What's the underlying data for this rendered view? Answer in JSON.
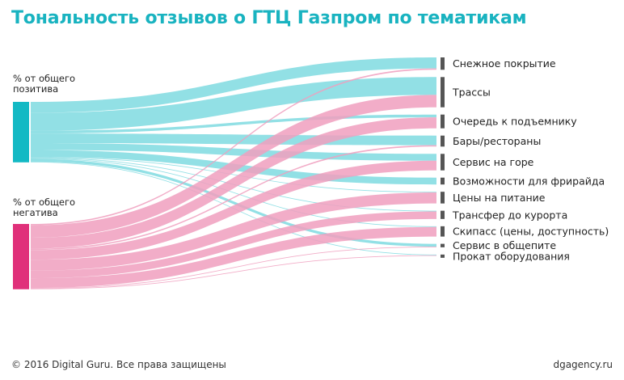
{
  "title": "Тональность отзывов о ГТЦ Газпром по тематикам",
  "sources": [
    {
      "id": "pos",
      "label": "% от общего\nпозитива",
      "color": "#13b9c4",
      "flow_color": "#7fdbe1"
    },
    {
      "id": "neg",
      "label": "% от общего\nнегатива",
      "color": "#e0307a",
      "flow_color": "#f09fbe"
    }
  ],
  "chart_data": {
    "type": "sankey",
    "unit": "% от общего",
    "targets": [
      {
        "label": "Снежное покрытие",
        "positive": 8.0,
        "negative": 1.0
      },
      {
        "label": "Трассы",
        "positive": 13.0,
        "negative": 9.0
      },
      {
        "label": "Очередь к подъемнику",
        "positive": 2.0,
        "negative": 8.0
      },
      {
        "label": "Бары/рестораны",
        "positive": 7.0,
        "negative": 1.0
      },
      {
        "label": "Сервис на горе",
        "positive": 5.0,
        "negative": 7.0
      },
      {
        "label": "Возможности для фрирайда",
        "positive": 5.0,
        "negative": 0.0
      },
      {
        "label": "Цены на питание",
        "positive": 0.5,
        "negative": 8.0
      },
      {
        "label": "Трансфер до курорта",
        "positive": 0.5,
        "negative": 5.5
      },
      {
        "label": "Скипасс (цены, доступность)",
        "positive": 0.5,
        "negative": 7.0
      },
      {
        "label": "Сервис в общепите",
        "positive": 2.0,
        "negative": 0.5
      },
      {
        "label": "Прокат оборудования",
        "positive": 0.5,
        "negative": 0.5
      }
    ]
  },
  "footer": {
    "copyright": "© 2016 Digital Guru. Все права защищены",
    "site": "dgagency.ru"
  }
}
